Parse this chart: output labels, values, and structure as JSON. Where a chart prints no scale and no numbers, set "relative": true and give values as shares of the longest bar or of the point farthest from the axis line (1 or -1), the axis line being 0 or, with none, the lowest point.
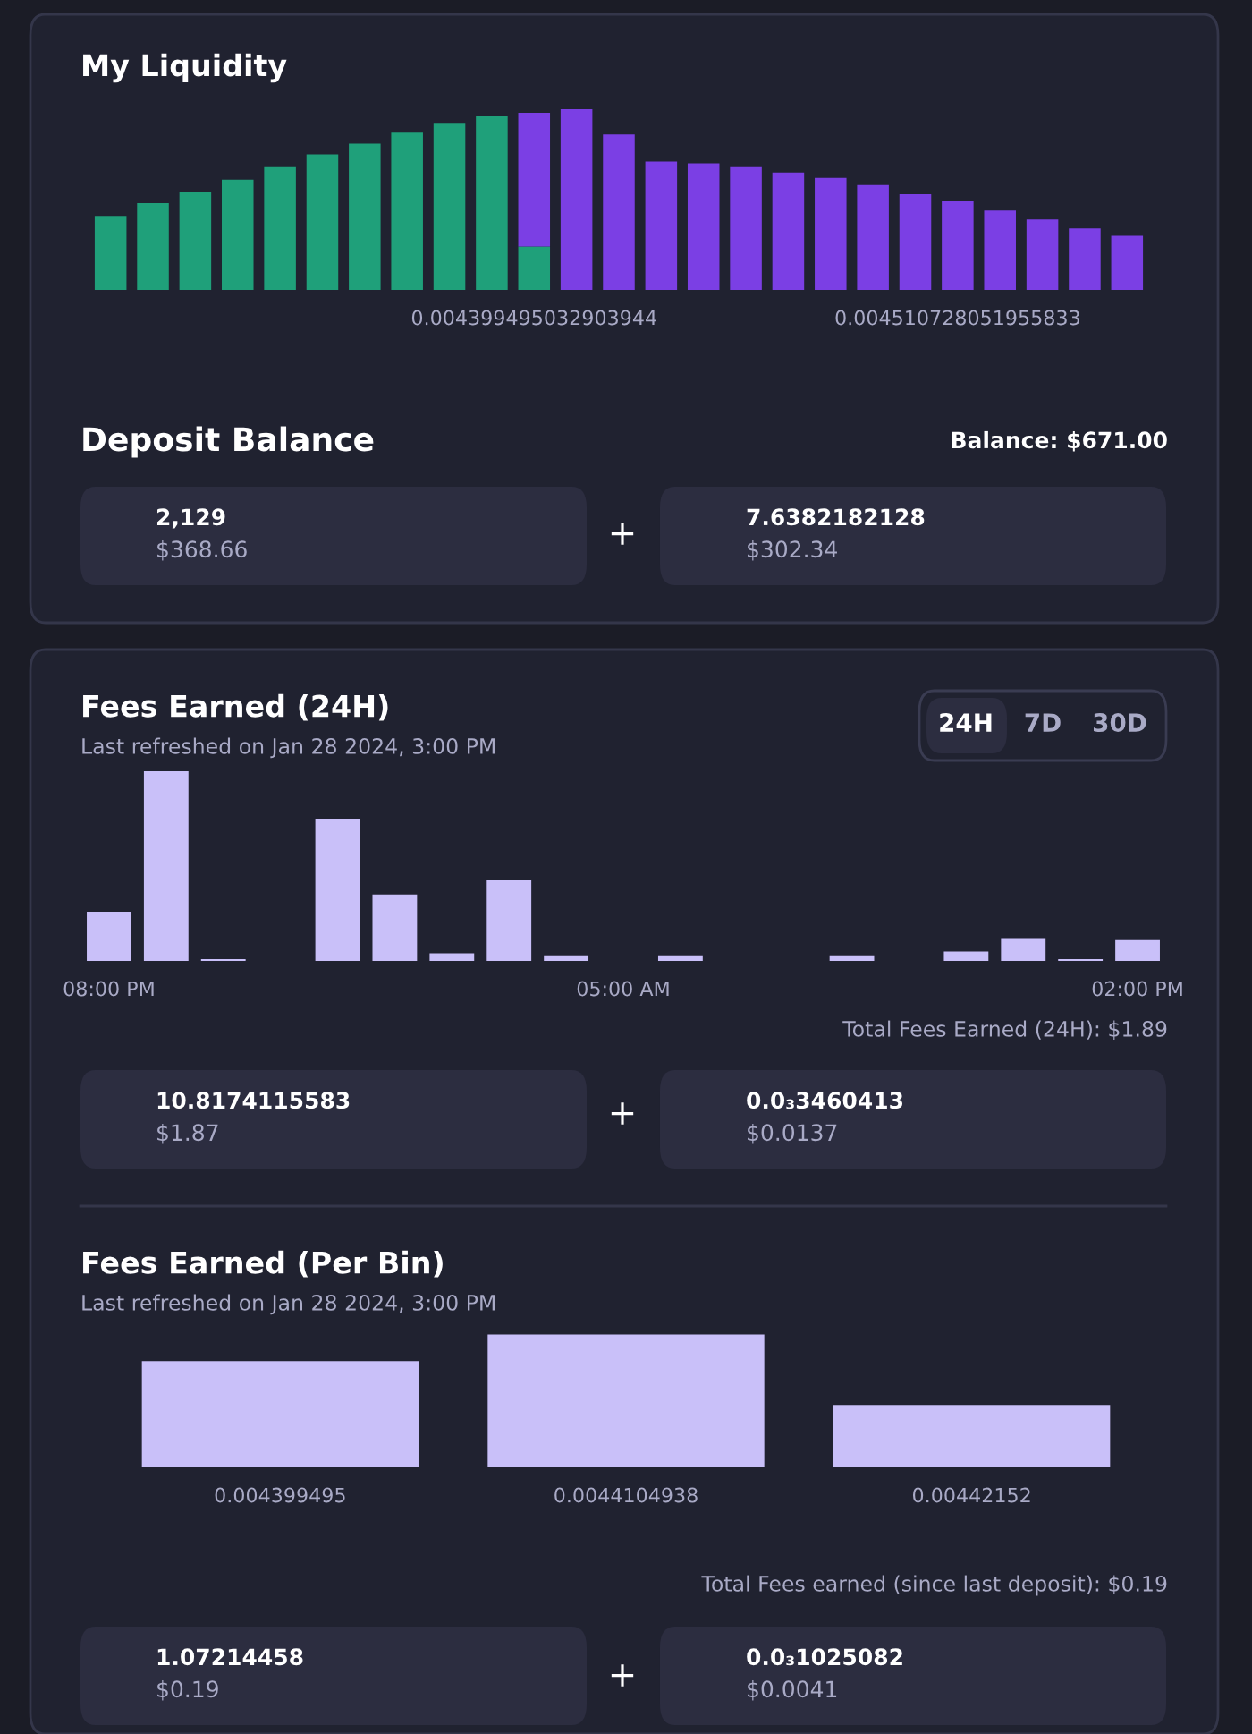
{
  "chart_data": [
    {
      "type": "bar",
      "title": "My Liquidity",
      "relative": true,
      "stacked": true,
      "tick_labels": "x",
      "categories": [
        null,
        null,
        null,
        null,
        null,
        null,
        null,
        null,
        null,
        null,
        "0.004399495032903944",
        null,
        null,
        null,
        null,
        null,
        null,
        null,
        null,
        null,
        "0.004510728051955833",
        null,
        null,
        null,
        null
      ],
      "series": [
        {
          "color": "#1fa07a",
          "values": [
            0.41,
            0.48,
            0.54,
            0.61,
            0.68,
            0.75,
            0.81,
            0.87,
            0.92,
            0.96,
            0.24,
            null,
            null,
            null,
            null,
            null,
            null,
            null,
            null,
            null,
            null,
            null,
            null,
            null,
            null
          ]
        },
        {
          "color": "#7b3fe4",
          "values": [
            null,
            null,
            null,
            null,
            null,
            null,
            null,
            null,
            null,
            null,
            0.74,
            1,
            0.86,
            0.71,
            0.7,
            0.68,
            0.65,
            0.62,
            0.58,
            0.53,
            0.49,
            0.44,
            0.39,
            0.34,
            0.3
          ]
        }
      ],
      "annotations": [
        "Deposit Balance",
        "Balance: $671.00",
        "2,129",
        "$368.66",
        "+",
        "7.6382182128",
        "$302.34"
      ]
    },
    {
      "type": "bar",
      "title": "Fees Earned (24H)",
      "subtitle": "Last refreshed on Jan 28 2024, 3:00 PM",
      "relative": true,
      "tick_labels": "x",
      "categories": [
        "08:00 PM",
        null,
        null,
        null,
        null,
        null,
        null,
        null,
        null,
        "05:00 AM",
        null,
        null,
        null,
        null,
        null,
        null,
        null,
        null,
        "02:00 PM"
      ],
      "values": [
        0.26,
        1,
        0.01,
        null,
        0.75,
        0.35,
        0.04,
        0.43,
        0.03,
        null,
        0.03,
        null,
        null,
        0.03,
        null,
        0.05,
        0.12,
        0.01,
        0.11
      ],
      "color": "#c9c0f9",
      "annotations": [
        "24H",
        "7D",
        "30D",
        "Total Fees Earned (24H): $1.89",
        "10.8174115583",
        "$1.87",
        "+",
        "0.0₃3460413",
        "$0.0137"
      ]
    },
    {
      "type": "bar",
      "title": "Fees Earned (Per Bin)",
      "subtitle": "Last refreshed on Jan 28 2024, 3:00 PM",
      "relative": true,
      "tick_labels": "x",
      "categories": [
        "0.004399495",
        "0.0044104938",
        "0.00442152"
      ],
      "values": [
        0.8,
        1,
        0.47
      ],
      "color": "#c9c0f9",
      "annotations": [
        "Total Fees earned (since last deposit): $0.19",
        "1.07214458",
        "$0.19",
        "+",
        "0.0₃1025082",
        "$0.0041"
      ]
    }
  ]
}
